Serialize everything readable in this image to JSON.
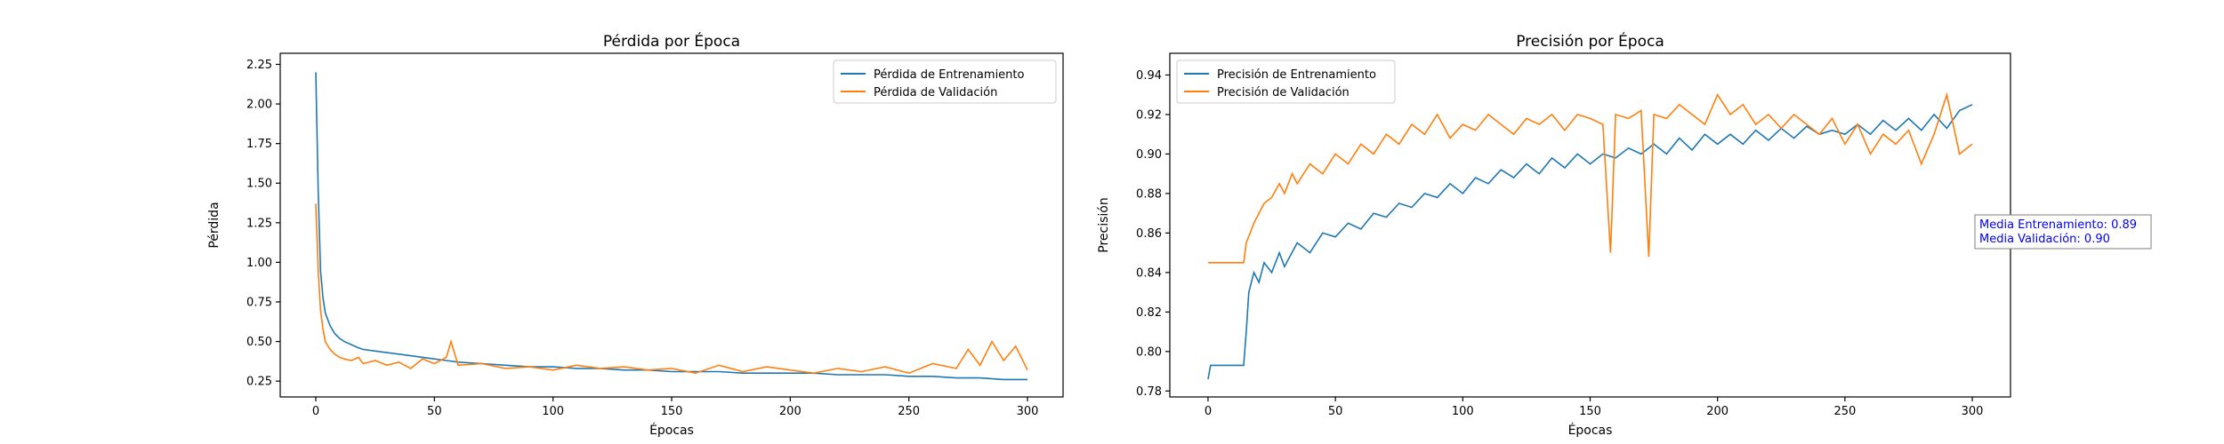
{
  "chart_data": [
    {
      "type": "line",
      "title": "Pérdida por Época",
      "xlabel": "Épocas",
      "ylabel": "Pérdida",
      "xlim": [
        -15,
        315
      ],
      "ylim": [
        0.15,
        2.32
      ],
      "xticks": [
        0,
        50,
        100,
        150,
        200,
        250,
        300
      ],
      "yticks": [
        0.25,
        0.5,
        0.75,
        1.0,
        1.25,
        1.5,
        1.75,
        2.0,
        2.25
      ],
      "ytick_format": "2",
      "legend": "upper-right",
      "series": [
        {
          "name": "Pérdida de Entrenamiento",
          "color": "#1f77b4",
          "x": [
            0,
            1,
            2,
            3,
            4,
            6,
            8,
            10,
            12,
            15,
            18,
            20,
            25,
            30,
            35,
            40,
            45,
            50,
            55,
            60,
            70,
            80,
            90,
            100,
            110,
            120,
            130,
            140,
            150,
            160,
            170,
            180,
            190,
            200,
            210,
            220,
            230,
            240,
            250,
            260,
            270,
            280,
            290,
            300
          ],
          "y": [
            2.2,
            1.45,
            0.95,
            0.78,
            0.68,
            0.6,
            0.55,
            0.52,
            0.5,
            0.48,
            0.46,
            0.45,
            0.44,
            0.43,
            0.42,
            0.41,
            0.4,
            0.39,
            0.38,
            0.37,
            0.36,
            0.35,
            0.34,
            0.34,
            0.33,
            0.33,
            0.32,
            0.32,
            0.31,
            0.31,
            0.31,
            0.3,
            0.3,
            0.3,
            0.3,
            0.29,
            0.29,
            0.29,
            0.28,
            0.28,
            0.27,
            0.27,
            0.26,
            0.26
          ]
        },
        {
          "name": "Pérdida de Validación",
          "color": "#ff7f0e",
          "x": [
            0,
            1,
            2,
            3,
            4,
            6,
            8,
            10,
            12,
            15,
            18,
            20,
            25,
            30,
            35,
            40,
            45,
            50,
            55,
            57,
            60,
            70,
            80,
            90,
            100,
            110,
            120,
            130,
            140,
            150,
            160,
            170,
            180,
            190,
            200,
            210,
            220,
            230,
            240,
            250,
            260,
            270,
            275,
            280,
            285,
            290,
            295,
            300
          ],
          "y": [
            1.37,
            0.95,
            0.7,
            0.58,
            0.5,
            0.45,
            0.42,
            0.4,
            0.39,
            0.38,
            0.4,
            0.36,
            0.38,
            0.35,
            0.37,
            0.33,
            0.39,
            0.36,
            0.4,
            0.5,
            0.35,
            0.36,
            0.33,
            0.34,
            0.32,
            0.35,
            0.33,
            0.34,
            0.32,
            0.33,
            0.3,
            0.35,
            0.31,
            0.34,
            0.32,
            0.3,
            0.33,
            0.31,
            0.34,
            0.3,
            0.36,
            0.33,
            0.45,
            0.35,
            0.5,
            0.38,
            0.47,
            0.32
          ]
        }
      ]
    },
    {
      "type": "line",
      "title": "Precisión por Época",
      "xlabel": "Épocas",
      "ylabel": "Precisión",
      "xlim": [
        -15,
        315
      ],
      "ylim": [
        0.777,
        0.951
      ],
      "xticks": [
        0,
        50,
        100,
        150,
        200,
        250,
        300
      ],
      "yticks": [
        0.78,
        0.8,
        0.82,
        0.84,
        0.86,
        0.88,
        0.9,
        0.92,
        0.94
      ],
      "ytick_format": "2",
      "legend": "upper-left",
      "series": [
        {
          "name": "Precisión de Entrenamiento",
          "color": "#1f77b4",
          "x": [
            0,
            1,
            5,
            10,
            14,
            15,
            16,
            18,
            20,
            22,
            25,
            28,
            30,
            35,
            40,
            45,
            50,
            55,
            60,
            65,
            70,
            75,
            80,
            85,
            90,
            95,
            100,
            105,
            110,
            115,
            120,
            125,
            130,
            135,
            140,
            145,
            150,
            155,
            160,
            165,
            170,
            175,
            180,
            185,
            190,
            195,
            200,
            205,
            210,
            215,
            220,
            225,
            230,
            235,
            240,
            245,
            250,
            255,
            260,
            265,
            270,
            275,
            280,
            285,
            290,
            295,
            300
          ],
          "y": [
            0.786,
            0.793,
            0.793,
            0.793,
            0.793,
            0.81,
            0.83,
            0.84,
            0.835,
            0.845,
            0.84,
            0.85,
            0.843,
            0.855,
            0.85,
            0.86,
            0.858,
            0.865,
            0.862,
            0.87,
            0.868,
            0.875,
            0.873,
            0.88,
            0.878,
            0.885,
            0.88,
            0.888,
            0.885,
            0.892,
            0.888,
            0.895,
            0.89,
            0.898,
            0.893,
            0.9,
            0.895,
            0.9,
            0.898,
            0.903,
            0.9,
            0.905,
            0.9,
            0.908,
            0.902,
            0.91,
            0.905,
            0.91,
            0.905,
            0.912,
            0.907,
            0.913,
            0.908,
            0.914,
            0.91,
            0.912,
            0.91,
            0.915,
            0.91,
            0.917,
            0.912,
            0.918,
            0.912,
            0.92,
            0.913,
            0.922,
            0.925
          ]
        },
        {
          "name": "Precisión de Validación",
          "color": "#ff7f0e",
          "x": [
            0,
            5,
            10,
            14,
            15,
            18,
            20,
            22,
            25,
            28,
            30,
            33,
            35,
            40,
            45,
            50,
            55,
            60,
            65,
            70,
            75,
            80,
            85,
            90,
            95,
            100,
            105,
            110,
            115,
            120,
            125,
            130,
            135,
            140,
            145,
            150,
            155,
            158,
            160,
            165,
            170,
            173,
            175,
            180,
            185,
            190,
            195,
            200,
            205,
            210,
            215,
            220,
            225,
            230,
            235,
            240,
            245,
            250,
            255,
            260,
            265,
            270,
            275,
            280,
            285,
            290,
            295,
            300
          ],
          "y": [
            0.845,
            0.845,
            0.845,
            0.845,
            0.855,
            0.865,
            0.87,
            0.875,
            0.878,
            0.885,
            0.88,
            0.89,
            0.885,
            0.895,
            0.89,
            0.9,
            0.895,
            0.905,
            0.9,
            0.91,
            0.905,
            0.915,
            0.91,
            0.92,
            0.908,
            0.915,
            0.912,
            0.92,
            0.915,
            0.91,
            0.918,
            0.915,
            0.92,
            0.912,
            0.92,
            0.918,
            0.915,
            0.85,
            0.92,
            0.918,
            0.922,
            0.848,
            0.92,
            0.918,
            0.925,
            0.92,
            0.915,
            0.93,
            0.92,
            0.925,
            0.915,
            0.92,
            0.913,
            0.92,
            0.915,
            0.91,
            0.918,
            0.905,
            0.915,
            0.9,
            0.91,
            0.905,
            0.912,
            0.895,
            0.91,
            0.93,
            0.9,
            0.905
          ]
        }
      ],
      "annotation": {
        "lines": [
          "Media Entrenamiento: 0.89",
          "Media Validación: 0.90"
        ],
        "color": "#0000ff"
      }
    }
  ]
}
